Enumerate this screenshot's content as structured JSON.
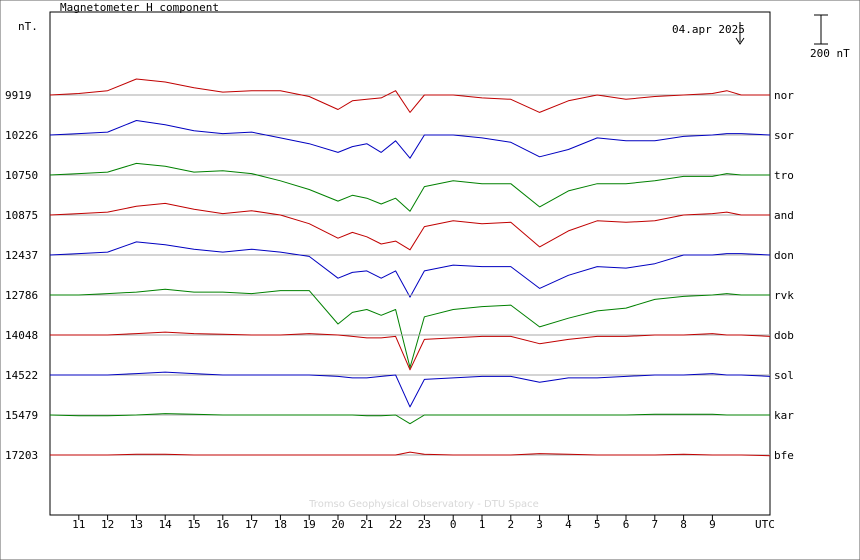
{
  "chart_data": {
    "type": "line",
    "title": "Magnetometer H component",
    "ylabel": "nT.",
    "date_label": "04.apr 2025",
    "scale_label": "200 nT",
    "scale_bar_nT": 200,
    "footer": "Tromso Geophysical Observatory - DTU Space",
    "x_unit": "UTC",
    "x_tick_labels": [
      "11",
      "12",
      "13",
      "14",
      "15",
      "16",
      "17",
      "18",
      "19",
      "20",
      "21",
      "22",
      "23",
      "0",
      "1",
      "2",
      "3",
      "4",
      "5",
      "6",
      "7",
      "8",
      "9"
    ],
    "x_range_hours_from_11utc": [
      -1,
      24
    ],
    "stations": [
      {
        "name": "nor",
        "baseline": 9919,
        "color": "#c00000",
        "hours": [
          -1,
          0,
          1,
          2,
          3,
          4,
          5,
          6,
          7,
          8,
          9,
          9.5,
          10,
          10.5,
          11,
          11.5,
          12,
          13,
          14,
          15,
          16,
          17,
          18,
          19,
          20,
          21,
          22,
          22.5,
          23,
          24
        ],
        "deltas": [
          0,
          10,
          30,
          110,
          90,
          50,
          20,
          30,
          30,
          -10,
          -100,
          -40,
          -30,
          -20,
          30,
          -120,
          0,
          0,
          -20,
          -30,
          -120,
          -40,
          0,
          -30,
          -10,
          0,
          10,
          30,
          0,
          0
        ]
      },
      {
        "name": "sor",
        "baseline": 10226,
        "color": "#0000c0",
        "hours": [
          -1,
          0,
          1,
          2,
          3,
          4,
          5,
          6,
          7,
          8,
          9,
          9.5,
          10,
          10.5,
          11,
          11.5,
          12,
          13,
          14,
          15,
          16,
          17,
          18,
          19,
          20,
          21,
          22,
          22.5,
          23,
          24
        ],
        "deltas": [
          0,
          10,
          20,
          100,
          70,
          30,
          10,
          20,
          -20,
          -60,
          -120,
          -80,
          -60,
          -120,
          -40,
          -160,
          0,
          0,
          -20,
          -50,
          -150,
          -100,
          -20,
          -40,
          -40,
          -10,
          0,
          10,
          10,
          0
        ]
      },
      {
        "name": "tro",
        "baseline": 10750,
        "color": "#008000",
        "hours": [
          -1,
          0,
          1,
          2,
          3,
          4,
          5,
          6,
          7,
          8,
          9,
          9.5,
          10,
          10.5,
          11,
          11.5,
          12,
          13,
          14,
          15,
          16,
          17,
          18,
          19,
          20,
          21,
          22,
          22.5,
          23,
          24
        ],
        "deltas": [
          0,
          10,
          20,
          80,
          60,
          20,
          30,
          10,
          -40,
          -100,
          -180,
          -140,
          -160,
          -200,
          -160,
          -250,
          -80,
          -40,
          -60,
          -60,
          -220,
          -110,
          -60,
          -60,
          -40,
          -10,
          -10,
          10,
          0,
          0
        ]
      },
      {
        "name": "and",
        "baseline": 10875,
        "color": "#c00000",
        "hours": [
          -1,
          0,
          1,
          2,
          3,
          4,
          5,
          6,
          7,
          8,
          9,
          9.5,
          10,
          10.5,
          11,
          11.5,
          12,
          13,
          14,
          15,
          16,
          17,
          18,
          19,
          20,
          21,
          22,
          22.5,
          23,
          24
        ],
        "deltas": [
          0,
          10,
          20,
          60,
          80,
          40,
          10,
          30,
          0,
          -60,
          -160,
          -120,
          -150,
          -200,
          -180,
          -240,
          -80,
          -40,
          -60,
          -50,
          -220,
          -110,
          -40,
          -50,
          -40,
          0,
          10,
          20,
          0,
          0
        ]
      },
      {
        "name": "don",
        "baseline": 12437,
        "color": "#0000c0",
        "hours": [
          -1,
          0,
          1,
          2,
          3,
          4,
          5,
          6,
          7,
          8,
          9,
          9.5,
          10,
          10.5,
          11,
          11.5,
          12,
          13,
          14,
          15,
          16,
          17,
          18,
          19,
          20,
          21,
          22,
          22.5,
          23,
          24
        ],
        "deltas": [
          0,
          10,
          20,
          90,
          70,
          40,
          20,
          40,
          20,
          -10,
          -160,
          -120,
          -110,
          -160,
          -110,
          -290,
          -110,
          -70,
          -80,
          -80,
          -230,
          -140,
          -80,
          -90,
          -60,
          0,
          0,
          10,
          10,
          0
        ]
      },
      {
        "name": "rvk",
        "baseline": 12786,
        "color": "#008000",
        "hours": [
          -1,
          0,
          1,
          2,
          3,
          4,
          5,
          6,
          7,
          8,
          9,
          9.5,
          10,
          10.5,
          11,
          11.5,
          12,
          13,
          14,
          15,
          16,
          17,
          18,
          19,
          20,
          21,
          22,
          22.5,
          23,
          24
        ],
        "deltas": [
          0,
          0,
          10,
          20,
          40,
          20,
          20,
          10,
          30,
          30,
          -200,
          -120,
          -100,
          -140,
          -100,
          -500,
          -150,
          -100,
          -80,
          -70,
          -220,
          -160,
          -110,
          -90,
          -30,
          -10,
          0,
          10,
          0,
          0
        ]
      },
      {
        "name": "dob",
        "baseline": 14048,
        "color": "#c00000",
        "hours": [
          -1,
          0,
          1,
          2,
          3,
          4,
          5,
          6,
          7,
          8,
          9,
          9.5,
          10,
          10.5,
          11,
          11.5,
          12,
          13,
          14,
          15,
          16,
          17,
          18,
          19,
          20,
          21,
          22,
          22.5,
          23,
          24
        ],
        "deltas": [
          0,
          0,
          0,
          10,
          20,
          10,
          5,
          0,
          0,
          10,
          0,
          -10,
          -20,
          -20,
          -10,
          -240,
          -30,
          -20,
          -10,
          -10,
          -60,
          -30,
          -10,
          -10,
          0,
          0,
          10,
          0,
          0,
          -10
        ]
      },
      {
        "name": "sol",
        "baseline": 14522,
        "color": "#0000c0",
        "hours": [
          -1,
          0,
          1,
          2,
          3,
          4,
          5,
          6,
          7,
          8,
          9,
          9.5,
          10,
          10.5,
          11,
          11.5,
          12,
          13,
          14,
          15,
          16,
          17,
          18,
          19,
          20,
          21,
          22,
          22.5,
          23,
          24
        ],
        "deltas": [
          0,
          0,
          0,
          10,
          20,
          10,
          0,
          0,
          0,
          0,
          -10,
          -20,
          -20,
          -10,
          0,
          -220,
          -30,
          -20,
          -10,
          -10,
          -50,
          -20,
          -20,
          -10,
          0,
          0,
          10,
          0,
          0,
          -10
        ]
      },
      {
        "name": "kar",
        "baseline": 15479,
        "color": "#008000",
        "hours": [
          -1,
          0,
          1,
          2,
          3,
          4,
          5,
          6,
          7,
          8,
          9,
          9.5,
          10,
          10.5,
          11,
          11.5,
          12,
          13,
          14,
          15,
          16,
          17,
          18,
          19,
          20,
          21,
          22,
          22.5,
          23,
          24
        ],
        "deltas": [
          0,
          -5,
          -5,
          0,
          10,
          5,
          0,
          0,
          0,
          0,
          0,
          0,
          -5,
          -5,
          0,
          -60,
          0,
          0,
          0,
          0,
          0,
          0,
          0,
          0,
          5,
          5,
          5,
          0,
          0,
          0
        ]
      },
      {
        "name": "bfe",
        "baseline": 17203,
        "color": "#c00000",
        "hours": [
          -1,
          0,
          1,
          2,
          3,
          4,
          5,
          6,
          7,
          8,
          9,
          9.5,
          10,
          10.5,
          11,
          11.5,
          12,
          13,
          14,
          15,
          16,
          17,
          18,
          19,
          20,
          21,
          22,
          22.5,
          23,
          24
        ],
        "deltas": [
          0,
          0,
          0,
          5,
          5,
          0,
          0,
          0,
          0,
          0,
          0,
          0,
          0,
          0,
          0,
          20,
          5,
          0,
          0,
          0,
          10,
          5,
          0,
          0,
          0,
          5,
          0,
          0,
          0,
          -5
        ]
      }
    ]
  }
}
